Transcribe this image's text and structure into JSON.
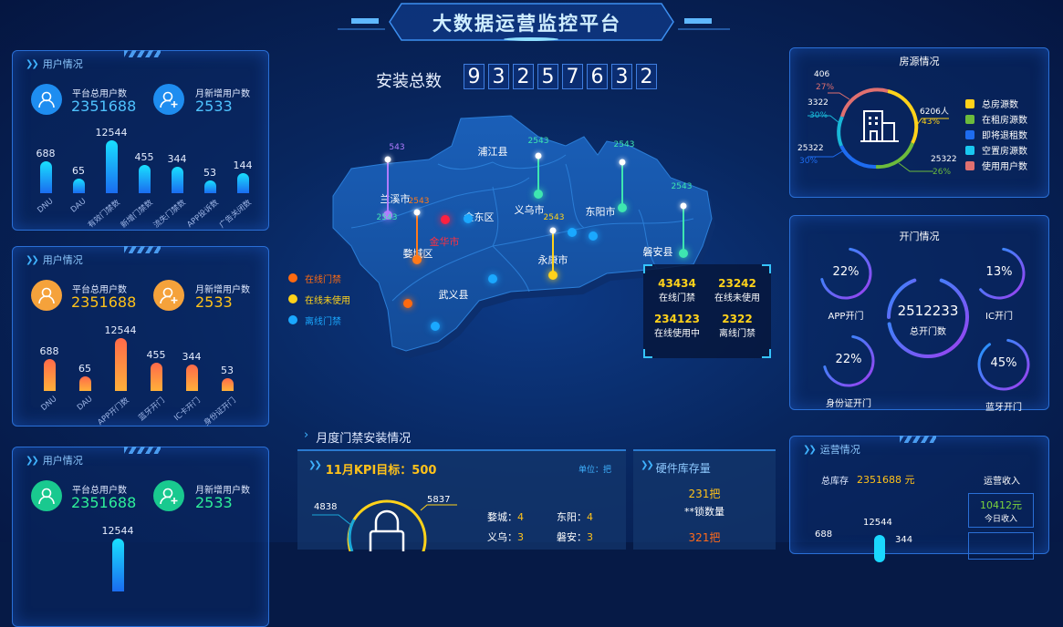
{
  "header": {
    "title": "大数据运营监控平台"
  },
  "install_total": {
    "label": "安装总数",
    "digits": [
      "9",
      "3",
      "2",
      "5",
      "7",
      "6",
      "3",
      "2"
    ]
  },
  "user_panels": [
    {
      "title": "用户情况",
      "total_label": "平台总用户数",
      "total": "2351688",
      "new_label": "月新增用户数",
      "new": "2533",
      "color": "#1e8df0",
      "value_color": "#4fc3ff",
      "bars": [
        {
          "label": "DNU",
          "value": 688
        },
        {
          "label": "DAU",
          "value": 65
        },
        {
          "label": "有效门禁数",
          "value": 12544
        },
        {
          "label": "新增门禁数",
          "value": 455
        },
        {
          "label": "流失门禁数",
          "value": 344
        },
        {
          "label": "APP投诉数",
          "value": 53
        },
        {
          "label": "广告关闭数",
          "value": 144
        }
      ]
    },
    {
      "title": "用户情况",
      "total_label": "平台总用户数",
      "total": "2351688",
      "new_label": "月新增用户数",
      "new": "2533",
      "color": "#f5a23b",
      "value_color": "#ffc21a",
      "bars": [
        {
          "label": "DNU",
          "value": 688
        },
        {
          "label": "DAU",
          "value": 65
        },
        {
          "label": "APP开门数",
          "value": 12544
        },
        {
          "label": "蓝牙开门",
          "value": 455
        },
        {
          "label": "IC卡开门",
          "value": 344
        },
        {
          "label": "身份证开门",
          "value": 53
        }
      ]
    },
    {
      "title": "用户情况",
      "total_label": "平台总用户数",
      "total": "2351688",
      "new_label": "月新增用户数",
      "new": "2533",
      "color": "#19c98f",
      "value_color": "#2ef09a",
      "bars": [
        {
          "label": "",
          "value": 12544
        }
      ]
    }
  ],
  "map": {
    "regions": [
      "浦江县",
      "兰溪市",
      "金东区",
      "义乌市",
      "东阳市",
      "金华市",
      "婺城区",
      "永康市",
      "磐安县",
      "武义县"
    ],
    "pins": [
      {
        "region": "兰溪市",
        "value": "543",
        "color": "#b07cff"
      },
      {
        "region": "婺城区",
        "value": "2543",
        "color": "#ff7a1a"
      },
      {
        "region": "兰溪市-2",
        "value": "2543",
        "color": "#3ee6b0"
      },
      {
        "region": "义乌市",
        "value": "2543",
        "color": "#3ee6b0"
      },
      {
        "region": "东阳市",
        "value": "2543",
        "color": "#3ee6b0"
      },
      {
        "region": "磐安县",
        "value": "2543",
        "color": "#3ee6b0"
      },
      {
        "region": "永康市",
        "value": "2543",
        "color": "#ffd21a"
      }
    ],
    "legend": [
      {
        "label": "在线门禁",
        "color": "#ff6a10"
      },
      {
        "label": "在线未使用",
        "color": "#ffd21a"
      },
      {
        "label": "离线门禁",
        "color": "#1aa8ff"
      }
    ],
    "stats": [
      {
        "value": "43434",
        "label": "在线门禁"
      },
      {
        "value": "23242",
        "label": "在线未使用"
      },
      {
        "value": "234123",
        "label": "在线使用中"
      },
      {
        "value": "2322",
        "label": "离线门禁"
      }
    ]
  },
  "housing": {
    "title": "房源情况",
    "labels": [
      {
        "value": "406",
        "pct": "27%",
        "color": "#e07070"
      },
      {
        "value": "3322",
        "pct": "30%",
        "color": "#19b8d8"
      },
      {
        "value": "25322",
        "pct": "30%",
        "color": "#1e6cf0"
      },
      {
        "value": "25322",
        "pct": "26%",
        "color": "#6cbb3c"
      },
      {
        "value": "6206人",
        "pct": "43%",
        "color": "#ffd21a"
      }
    ],
    "legend": [
      {
        "label": "总房源数",
        "color": "#ffd21a"
      },
      {
        "label": "在租房源数",
        "color": "#6cbb3c"
      },
      {
        "label": "即将退租数",
        "color": "#1e6cf0"
      },
      {
        "label": "空置房源数",
        "color": "#19c8f0"
      },
      {
        "label": "使用用户数",
        "color": "#e07070"
      }
    ]
  },
  "doors": {
    "title": "开门情况",
    "total": "2512233",
    "total_label": "总开门数",
    "items": [
      {
        "label": "APP开门",
        "pct": "22%",
        "value": 22
      },
      {
        "label": "IC开门",
        "pct": "13%",
        "value": 13
      },
      {
        "label": "身份证开门",
        "pct": "22%",
        "value": 22
      },
      {
        "label": "蓝牙开门",
        "pct": "45%",
        "value": 45
      }
    ]
  },
  "monthly": {
    "title": "月度门禁安装情况",
    "kpi": "11月KPI目标：500",
    "unit": "单位：把",
    "left_value": "4838",
    "right_value": "5837",
    "cities": [
      {
        "name": "婺城：",
        "value": "4"
      },
      {
        "name": "东阳：",
        "value": "4"
      },
      {
        "name": "义乌：",
        "value": "3"
      },
      {
        "name": "磐安：",
        "value": "3"
      }
    ]
  },
  "hardware": {
    "title": "硬件库存量",
    "v1": "231把",
    "l1": "**锁数量",
    "v2": "321把"
  },
  "operations": {
    "title": "运营情况",
    "stock_label": "总库存",
    "stock": "2351688 元",
    "income_label": "运营收入",
    "today": "10412元",
    "today_label": "今日收入",
    "chart_values": [
      "688",
      "12544",
      "344"
    ]
  }
}
